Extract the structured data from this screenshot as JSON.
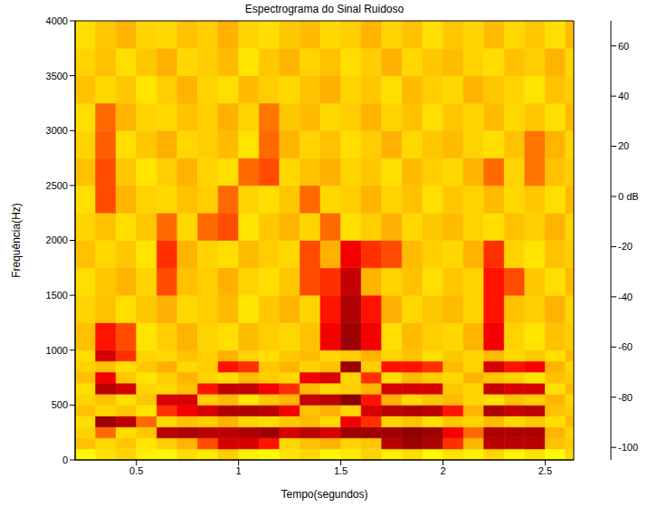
{
  "chart_data": {
    "type": "heatmap",
    "title": "Espectrograma do Sinal Ruidoso",
    "x_label": "Tempo(segundos)",
    "y_label": "Frequência(Hz)",
    "xlim": [
      0.2,
      2.64
    ],
    "xticks": [
      0.5,
      1,
      1.5,
      2,
      2.5
    ],
    "ylim": [
      0,
      4000
    ],
    "yticks": [
      0,
      500,
      1000,
      1500,
      2000,
      2500,
      3000,
      3500,
      4000
    ],
    "x_bins": [
      0.2,
      0.3,
      0.4,
      0.5,
      0.6,
      0.7,
      0.8,
      0.9,
      1.0,
      1.1,
      1.2,
      1.3,
      1.4,
      1.5,
      1.6,
      1.7,
      1.8,
      1.9,
      2.0,
      2.1,
      2.2,
      2.3,
      2.4,
      2.5,
      2.6,
      2.7
    ],
    "y_bins": [
      0,
      100,
      200,
      300,
      400,
      500,
      600,
      700,
      800,
      900,
      1000,
      1250,
      1500,
      1750,
      2000,
      2250,
      2500,
      2750,
      3000,
      3250,
      3500,
      3750,
      4000
    ],
    "cells": [
      [
        5,
        9,
        12,
        7,
        6,
        10,
        8,
        13,
        7,
        5,
        9,
        11,
        6,
        8,
        12,
        7,
        10,
        5,
        9,
        7,
        11,
        6,
        9,
        5,
        11
      ],
      [
        15,
        11,
        14,
        9,
        13,
        17,
        35,
        55,
        55,
        45,
        11,
        15,
        18,
        12,
        14,
        60,
        65,
        62,
        40,
        17,
        60,
        60,
        60,
        15,
        13
      ],
      [
        12,
        30,
        10,
        14,
        60,
        62,
        60,
        60,
        62,
        65,
        55,
        60,
        55,
        65,
        65,
        65,
        68,
        65,
        50,
        30,
        62,
        62,
        62,
        17,
        11
      ],
      [
        10,
        65,
        60,
        30,
        11,
        15,
        13,
        18,
        12,
        10,
        14,
        16,
        11,
        50,
        40,
        12,
        15,
        10,
        14,
        12,
        16,
        11,
        14,
        10,
        16
      ],
      [
        15,
        11,
        14,
        9,
        40,
        50,
        55,
        62,
        62,
        60,
        50,
        15,
        18,
        12,
        55,
        60,
        62,
        60,
        45,
        17,
        62,
        58,
        60,
        15,
        13
      ],
      [
        12,
        15,
        10,
        14,
        55,
        55,
        13,
        16,
        9,
        14,
        17,
        58,
        60,
        68,
        45,
        18,
        11,
        14,
        16,
        12,
        10,
        15,
        13,
        17,
        11
      ],
      [
        10,
        60,
        55,
        12,
        11,
        15,
        45,
        58,
        58,
        50,
        40,
        16,
        11,
        13,
        17,
        55,
        55,
        55,
        14,
        12,
        58,
        55,
        55,
        10,
        16
      ],
      [
        15,
        50,
        14,
        9,
        13,
        17,
        12,
        10,
        16,
        13,
        11,
        50,
        55,
        12,
        40,
        10,
        16,
        13,
        11,
        17,
        14,
        12,
        9,
        15,
        13
      ],
      [
        12,
        15,
        10,
        14,
        18,
        11,
        13,
        45,
        40,
        14,
        17,
        12,
        15,
        65,
        13,
        45,
        45,
        40,
        16,
        12,
        55,
        45,
        50,
        17,
        11
      ],
      [
        10,
        55,
        40,
        12,
        11,
        15,
        13,
        18,
        12,
        10,
        14,
        16,
        11,
        13,
        17,
        12,
        15,
        10,
        14,
        12,
        16,
        11,
        14,
        10,
        16
      ],
      [
        15,
        45,
        35,
        9,
        13,
        17,
        12,
        10,
        16,
        13,
        11,
        15,
        50,
        65,
        50,
        10,
        16,
        13,
        11,
        17,
        50,
        12,
        9,
        15,
        13
      ],
      [
        12,
        15,
        10,
        14,
        18,
        11,
        13,
        16,
        9,
        14,
        17,
        12,
        45,
        62,
        45,
        18,
        11,
        14,
        16,
        12,
        45,
        15,
        13,
        17,
        11
      ],
      [
        10,
        14,
        17,
        12,
        35,
        15,
        13,
        18,
        12,
        10,
        14,
        35,
        40,
        58,
        17,
        12,
        15,
        10,
        14,
        12,
        45,
        35,
        14,
        10,
        16
      ],
      [
        15,
        11,
        14,
        9,
        40,
        17,
        12,
        10,
        16,
        13,
        11,
        35,
        18,
        50,
        40,
        35,
        16,
        13,
        11,
        17,
        40,
        12,
        9,
        15,
        13
      ],
      [
        12,
        15,
        10,
        14,
        30,
        11,
        30,
        35,
        9,
        14,
        17,
        12,
        30,
        10,
        13,
        18,
        11,
        14,
        16,
        12,
        10,
        15,
        13,
        17,
        11
      ],
      [
        10,
        35,
        17,
        12,
        11,
        15,
        13,
        30,
        12,
        10,
        14,
        30,
        11,
        13,
        17,
        12,
        15,
        10,
        14,
        12,
        16,
        11,
        14,
        10,
        16
      ],
      [
        15,
        35,
        14,
        9,
        13,
        17,
        12,
        10,
        30,
        35,
        11,
        15,
        18,
        12,
        14,
        10,
        16,
        13,
        11,
        17,
        30,
        12,
        28,
        15,
        13
      ],
      [
        12,
        32,
        10,
        14,
        18,
        11,
        13,
        16,
        9,
        30,
        17,
        12,
        15,
        10,
        13,
        18,
        11,
        14,
        16,
        12,
        10,
        15,
        28,
        17,
        11
      ],
      [
        10,
        30,
        17,
        12,
        11,
        15,
        13,
        18,
        12,
        28,
        14,
        16,
        11,
        13,
        17,
        12,
        15,
        10,
        14,
        12,
        16,
        11,
        14,
        10,
        16
      ],
      [
        15,
        11,
        14,
        9,
        13,
        17,
        12,
        10,
        16,
        13,
        11,
        15,
        18,
        12,
        14,
        10,
        16,
        13,
        11,
        17,
        14,
        12,
        9,
        15,
        13
      ],
      [
        12,
        15,
        10,
        14,
        18,
        11,
        13,
        16,
        9,
        14,
        17,
        12,
        15,
        10,
        13,
        18,
        11,
        14,
        16,
        12,
        10,
        15,
        13,
        17,
        11
      ],
      [
        10,
        14,
        17,
        12,
        11,
        15,
        13,
        18,
        12,
        10,
        14,
        16,
        11,
        13,
        17,
        12,
        15,
        10,
        14,
        12,
        16,
        11,
        14,
        10,
        16
      ]
    ],
    "colorbar": {
      "lim": [
        -105,
        70
      ],
      "ticks": [
        -100,
        -80,
        -60,
        -40,
        -20,
        {
          "value": 0,
          "label": "0 dB"
        },
        20,
        40,
        60
      ]
    }
  }
}
